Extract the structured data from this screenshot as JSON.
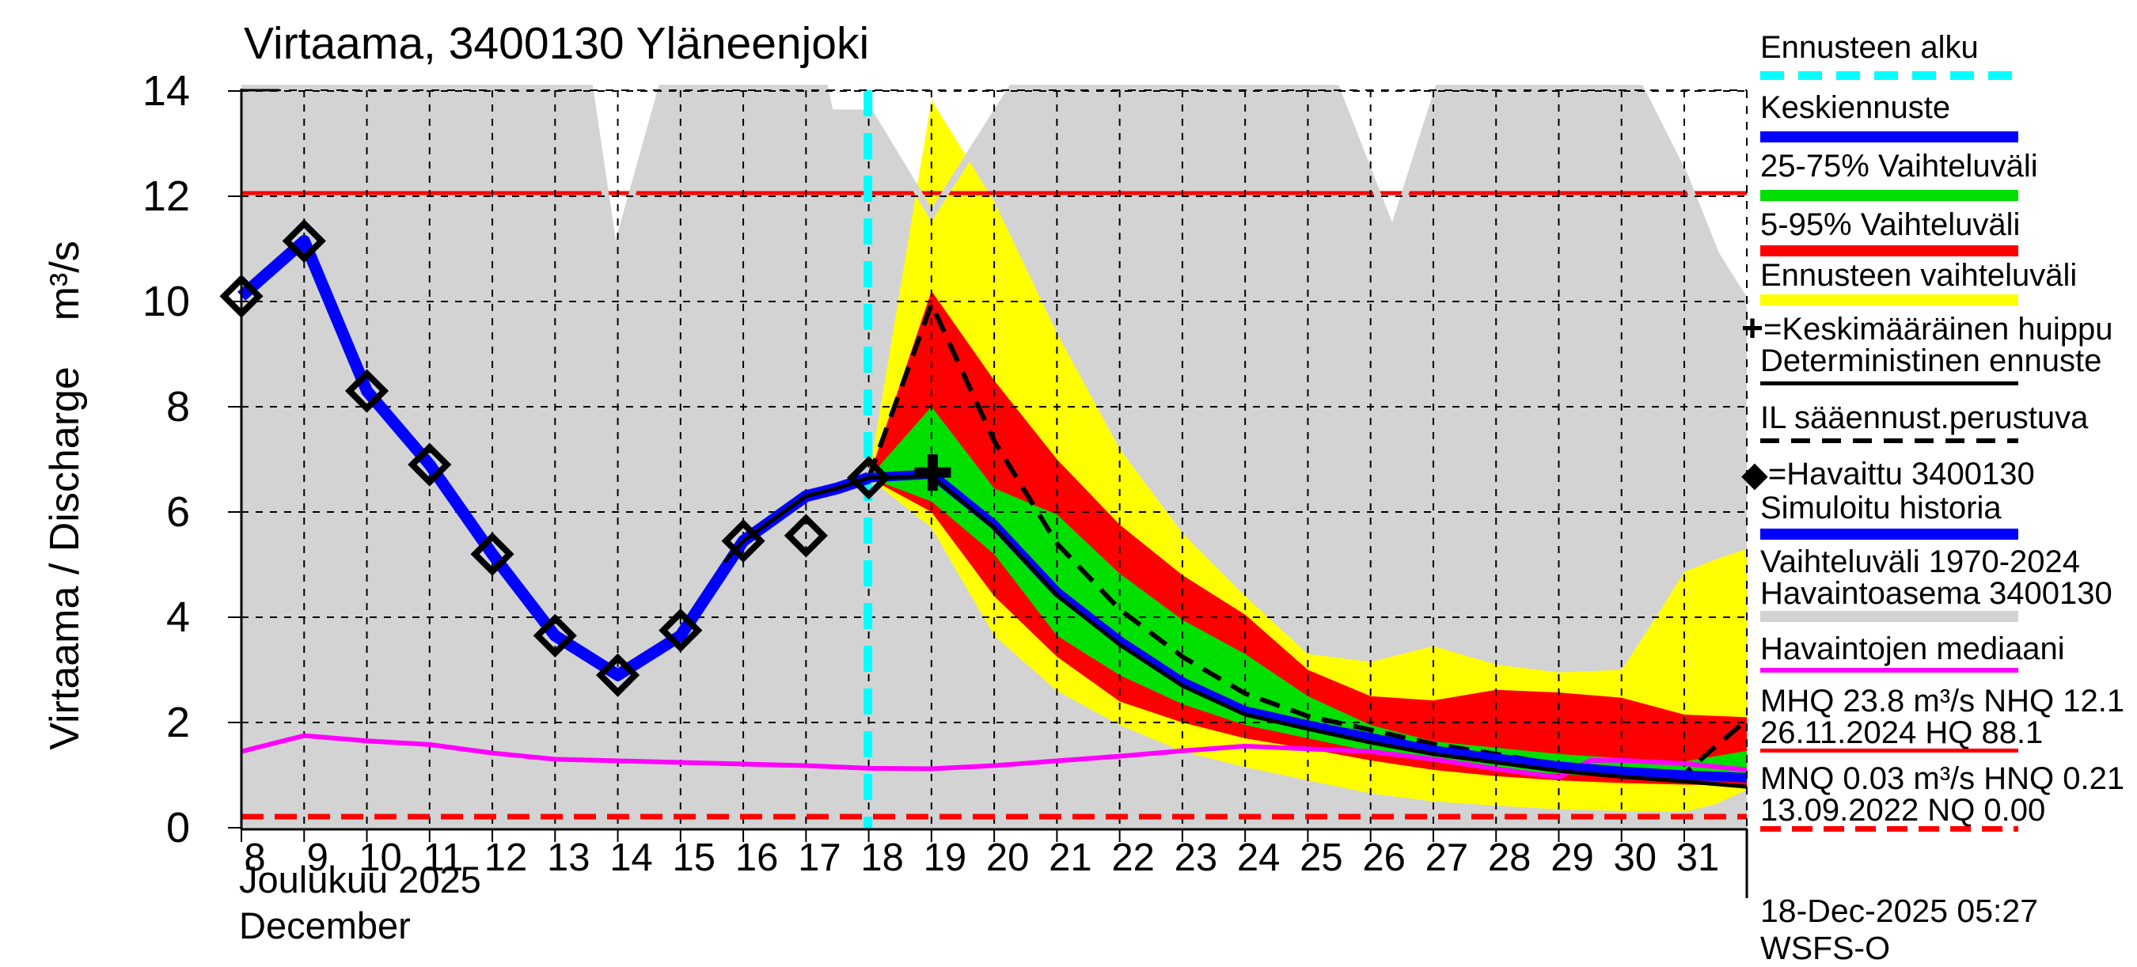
{
  "title": "Virtaama, 3400130 Yläneenjoki",
  "y_axis": {
    "label": "Virtaama / Discharge    m³/s",
    "ticks": [
      0,
      2,
      4,
      6,
      8,
      10,
      12,
      14
    ]
  },
  "x_axis": {
    "days": [
      8,
      9,
      10,
      11,
      12,
      13,
      14,
      15,
      16,
      17,
      18,
      19,
      20,
      21,
      22,
      23,
      24,
      25,
      26,
      27,
      28,
      29,
      30,
      31
    ],
    "month_label_fi": "Joulukuu 2025",
    "month_label_en": "December"
  },
  "footer": {
    "timestamp": "18-Dec-2025 05:27 WSFS-O"
  },
  "legend": {
    "rows": [
      {
        "label": "Ennusteen alku",
        "sample": "cyan-dashed"
      },
      {
        "label": "Keskiennuste",
        "sample": "blue-bar"
      },
      {
        "label": "25-75% Vaihteluväli",
        "sample": "green-bar"
      },
      {
        "label": "5-95% Vaihteluväli",
        "sample": "red-bar"
      },
      {
        "label": "Ennusteen vaihteluväli",
        "sample": "yellow-bar"
      },
      {
        "marker": "+",
        "label": "=Keskimääräinen huippu"
      },
      {
        "label": "Deterministinen ennuste",
        "sample": "black-line"
      },
      {
        "label": "IL sääennust.perustuva",
        "sample": "black-dashed"
      },
      {
        "marker": "◆",
        "label": "=Havaittu 3400130"
      },
      {
        "label": "Simuloitu historia",
        "sample": "blue-bar"
      },
      {
        "label": "Vaihteluväli 1970-2024",
        "label2": "Havaintoasema 3400130",
        "sample": "gray-bar"
      },
      {
        "label": "Havaintojen mediaani",
        "sample": "magenta-line"
      },
      {
        "label": "MHQ 23.8 m³/s NHQ 12.1",
        "label2": "26.11.2024 HQ 88.1",
        "sample": "red-line"
      },
      {
        "label": "MNQ 0.03 m³/s HNQ 0.21",
        "label2": "13.09.2022 NQ 0.00",
        "sample": "red-dashed"
      }
    ]
  },
  "chart_data": {
    "type": "area",
    "title": "Virtaama, 3400130 Yläneenjoki",
    "ylabel": "Virtaama / Discharge m³/s",
    "xlabel": "Joulukuu 2025 / December",
    "x_unit": "day of December 2025",
    "x_range": [
      8,
      32
    ],
    "ylim": [
      0,
      14
    ],
    "y_ticks": [
      0,
      2,
      4,
      6,
      8,
      10,
      12,
      14
    ],
    "grid": true,
    "forecast_start_day": 18,
    "nhq_level": 12.06,
    "hnq_level": 0.21,
    "mean_peak_marker": [
      19.02,
      6.75
    ],
    "observed_points": [
      [
        8,
        10.1
      ],
      [
        9,
        11.15
      ],
      [
        10,
        8.3
      ],
      [
        11,
        6.9
      ],
      [
        12,
        5.2
      ],
      [
        13,
        3.65
      ],
      [
        14,
        2.9
      ],
      [
        15,
        3.75
      ],
      [
        16,
        5.45
      ],
      [
        17,
        5.55
      ],
      [
        18,
        6.65
      ]
    ],
    "simulated_history": [
      [
        8,
        10.1
      ],
      [
        9,
        11.15
      ],
      [
        10,
        8.3
      ],
      [
        11,
        6.9
      ],
      [
        12,
        5.2
      ],
      [
        13,
        3.65
      ],
      [
        14,
        2.9
      ],
      [
        15,
        3.65
      ],
      [
        16,
        5.45
      ],
      [
        17,
        6.3
      ],
      [
        17.5,
        6.45
      ],
      [
        18,
        6.65
      ]
    ],
    "mean_forecast": [
      [
        18,
        6.65
      ],
      [
        19,
        6.72
      ],
      [
        20,
        5.76
      ],
      [
        21,
        4.48
      ],
      [
        22,
        3.55
      ],
      [
        23,
        2.77
      ],
      [
        24,
        2.22
      ],
      [
        25,
        1.95
      ],
      [
        26,
        1.71
      ],
      [
        27,
        1.47
      ],
      [
        28,
        1.32
      ],
      [
        29,
        1.17
      ],
      [
        30,
        1.07
      ],
      [
        31,
        1.0
      ],
      [
        32,
        0.95
      ]
    ],
    "deterministic_forecast": [
      [
        15.7,
        5.05
      ],
      [
        16,
        5.45
      ],
      [
        17,
        6.3
      ],
      [
        17.5,
        6.45
      ],
      [
        18,
        6.65
      ],
      [
        19,
        6.68
      ],
      [
        20,
        5.7
      ],
      [
        21,
        4.42
      ],
      [
        22,
        3.48
      ],
      [
        23,
        2.7
      ],
      [
        24,
        2.15
      ],
      [
        25,
        1.88
      ],
      [
        26,
        1.62
      ],
      [
        27,
        1.4
      ],
      [
        28,
        1.24
      ],
      [
        29,
        1.08
      ],
      [
        30,
        0.97
      ],
      [
        31,
        0.88
      ],
      [
        32,
        0.78
      ]
    ],
    "il_weather_forecast": [
      [
        18,
        6.65
      ],
      [
        19,
        9.95
      ],
      [
        20,
        7.35
      ],
      [
        21,
        5.4
      ],
      [
        22,
        4.15
      ],
      [
        23,
        3.25
      ],
      [
        24,
        2.55
      ],
      [
        25,
        2.12
      ],
      [
        26,
        1.86
      ],
      [
        27,
        1.59
      ],
      [
        28,
        1.4
      ],
      [
        29,
        1.19
      ],
      [
        30,
        0.99
      ],
      [
        30.8,
        0.93
      ],
      [
        31,
        1.02
      ],
      [
        31.4,
        1.44
      ],
      [
        32,
        2.05
      ]
    ],
    "median_observations": [
      [
        8,
        1.45
      ],
      [
        9,
        1.75
      ],
      [
        10,
        1.65
      ],
      [
        11,
        1.58
      ],
      [
        12,
        1.42
      ],
      [
        13,
        1.3
      ],
      [
        14,
        1.27
      ],
      [
        15,
        1.24
      ],
      [
        16,
        1.21
      ],
      [
        17,
        1.18
      ],
      [
        18,
        1.13
      ],
      [
        19,
        1.12
      ],
      [
        20,
        1.18
      ],
      [
        21,
        1.27
      ],
      [
        22,
        1.36
      ],
      [
        23,
        1.46
      ],
      [
        24,
        1.55
      ],
      [
        25,
        1.5
      ],
      [
        26,
        1.45
      ],
      [
        27,
        1.3
      ],
      [
        28,
        1.12
      ],
      [
        29,
        0.96
      ],
      [
        29.5,
        1.28
      ],
      [
        30,
        1.28
      ],
      [
        31,
        1.22
      ],
      [
        32,
        1.1
      ]
    ],
    "band_forecast_range": {
      "days": [
        18,
        19,
        20,
        21,
        22,
        23,
        24,
        25,
        26,
        27,
        28,
        29,
        30,
        30.6,
        31,
        31.5,
        32
      ],
      "hi": [
        6.65,
        13.83,
        11.9,
        9.4,
        7.2,
        5.6,
        4.4,
        3.3,
        3.15,
        3.45,
        3.1,
        2.95,
        3.0,
        4.1,
        4.86,
        5.1,
        5.3
      ],
      "lo": [
        6.65,
        5.7,
        3.65,
        2.6,
        1.95,
        1.45,
        1.15,
        0.9,
        0.65,
        0.5,
        0.42,
        0.35,
        0.32,
        0.31,
        0.3,
        0.45,
        0.72
      ]
    },
    "band_5_95": {
      "days": [
        18,
        19,
        20,
        21,
        22,
        23,
        24,
        25,
        26,
        27,
        28,
        29,
        30,
        31,
        32
      ],
      "hi": [
        6.65,
        10.2,
        8.5,
        7.0,
        5.76,
        4.8,
        4.05,
        3.0,
        2.5,
        2.42,
        2.62,
        2.57,
        2.47,
        2.15,
        2.1
      ],
      "lo": [
        6.65,
        6.0,
        4.4,
        3.25,
        2.4,
        2.0,
        1.7,
        1.5,
        1.28,
        1.1,
        0.98,
        0.9,
        0.85,
        0.82,
        0.8
      ]
    },
    "band_25_75": {
      "days": [
        18,
        19,
        20,
        21,
        22,
        23,
        24,
        25,
        26,
        27,
        28,
        29,
        30,
        31,
        32
      ],
      "hi": [
        6.65,
        8.0,
        6.45,
        5.95,
        4.83,
        3.95,
        3.3,
        2.5,
        1.95,
        1.64,
        1.52,
        1.4,
        1.32,
        1.26,
        1.46
      ],
      "lo": [
        6.65,
        6.2,
        5.2,
        3.65,
        2.9,
        2.35,
        1.95,
        1.7,
        1.45,
        1.25,
        1.12,
        1.02,
        0.97,
        0.95,
        0.87
      ]
    },
    "historical_range_top": [
      [
        8,
        14.05
      ],
      [
        13.55,
        14.05
      ],
      [
        13.95,
        10.85
      ],
      [
        14.7,
        14.05
      ],
      [
        17.3,
        14.05
      ],
      [
        17.38,
        13.58
      ],
      [
        18.02,
        13.58
      ],
      [
        19,
        11.65
      ],
      [
        20.28,
        14.05
      ],
      [
        25.45,
        14.05
      ],
      [
        26.35,
        11.3
      ],
      [
        27.08,
        14.05
      ],
      [
        30.3,
        14.05
      ],
      [
        31,
        12.4
      ],
      [
        31.5,
        10.9
      ],
      [
        32,
        9.95
      ]
    ],
    "colors": {
      "historical_range": "#d3d3d3",
      "forecast_range": "#ffff00",
      "band_5_95": "#ff0000",
      "band_25_75": "#00e000",
      "mean_forecast": "#0000ff",
      "simulated_history": "#0000ff",
      "median": "#ff00ff",
      "forecast_start": "#00ffff",
      "nhq_line": "#ff0000",
      "hnq_line": "#ff0000",
      "deterministic": "#000000",
      "il_forecast": "#000000"
    }
  }
}
